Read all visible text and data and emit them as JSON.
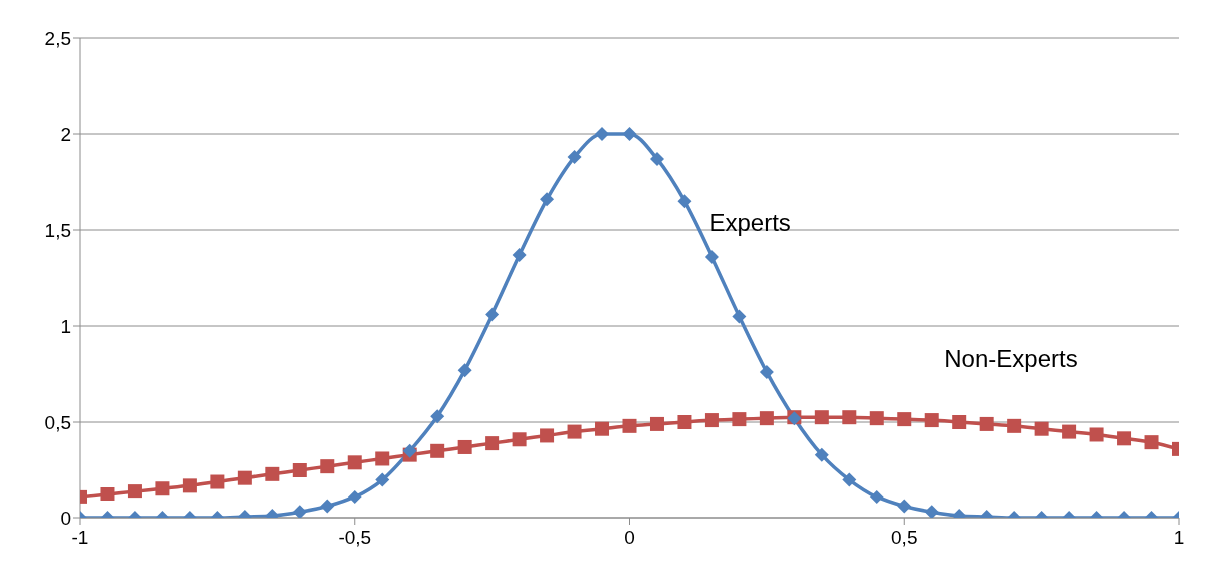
{
  "chart_data": {
    "type": "line",
    "x": [
      -1,
      -0.95,
      -0.9,
      -0.85,
      -0.8,
      -0.75,
      -0.7,
      -0.65,
      -0.6,
      -0.55,
      -0.5,
      -0.45,
      -0.4,
      -0.35,
      -0.3,
      -0.25,
      -0.2,
      -0.15,
      -0.1,
      -0.05,
      0,
      0.05,
      0.1,
      0.15,
      0.2,
      0.25,
      0.3,
      0.35,
      0.4,
      0.45,
      0.5,
      0.55,
      0.6,
      0.65,
      0.7,
      0.75,
      0.8,
      0.85,
      0.9,
      0.95,
      1
    ],
    "series": [
      {
        "name": "Experts",
        "color": "#4f81bd",
        "marker": "diamond",
        "values": [
          0,
          0,
          0,
          0,
          0,
          0,
          0.005,
          0.01,
          0.03,
          0.06,
          0.11,
          0.2,
          0.35,
          0.53,
          0.77,
          1.06,
          1.37,
          1.66,
          1.88,
          2,
          2,
          1.87,
          1.65,
          1.36,
          1.05,
          0.76,
          0.52,
          0.33,
          0.2,
          0.11,
          0.06,
          0.03,
          0.01,
          0.005,
          0,
          0,
          0,
          0,
          0,
          0,
          0
        ]
      },
      {
        "name": "Non-Experts",
        "color": "#c0504d",
        "marker": "square",
        "values": [
          0.11,
          0.125,
          0.14,
          0.155,
          0.17,
          0.19,
          0.21,
          0.23,
          0.25,
          0.27,
          0.29,
          0.31,
          0.33,
          0.35,
          0.37,
          0.39,
          0.41,
          0.43,
          0.45,
          0.465,
          0.48,
          0.49,
          0.5,
          0.51,
          0.515,
          0.52,
          0.525,
          0.525,
          0.525,
          0.52,
          0.515,
          0.51,
          0.5,
          0.49,
          0.48,
          0.465,
          0.45,
          0.435,
          0.415,
          0.395,
          0.36
        ]
      }
    ],
    "xlim": [
      -1,
      1
    ],
    "xticks": [
      -1,
      {
        "value": -0.5,
        "label": "-0,5"
      },
      0,
      {
        "value": 0.5,
        "label": "0,5"
      },
      1
    ],
    "ylim": [
      0,
      2.5
    ],
    "yticks": [
      0,
      {
        "value": 0.5,
        "label": "0,5"
      },
      1,
      {
        "value": 1.5,
        "label": "1,5"
      },
      2,
      {
        "value": 2.5,
        "label": "2,5"
      }
    ],
    "grid": "y",
    "legend": false,
    "line_style": "solid"
  }
}
